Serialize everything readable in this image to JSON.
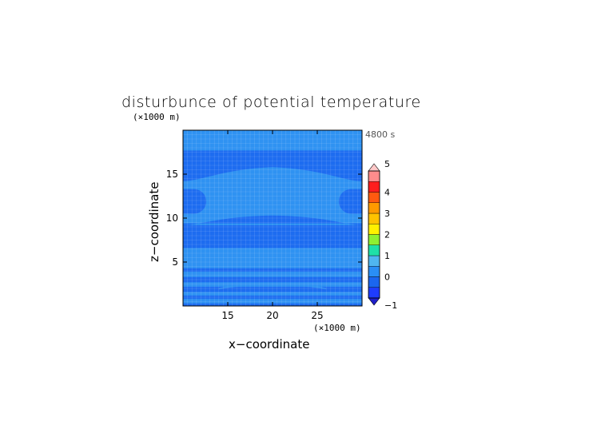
{
  "chart_data": {
    "type": "heatmap",
    "title": "disturbunce of potential temperature",
    "xlabel": "x−coordinate",
    "ylabel": "z−coordinate",
    "x_unit": "(×1000 m)",
    "y_unit": "(×1000 m)",
    "time_label": "4800 s",
    "xlim": [
      10,
      30
    ],
    "ylim": [
      0,
      20
    ],
    "x_ticks": [
      "15",
      "20",
      "25"
    ],
    "y_ticks": [
      "5",
      "10",
      "15"
    ],
    "x_tick_values": [
      15,
      20,
      25
    ],
    "y_tick_values": [
      5,
      10,
      15
    ],
    "colorbar": {
      "ticks": [
        "−1",
        "0",
        "1",
        "2",
        "3",
        "4",
        "5"
      ],
      "tick_values": [
        -1,
        0,
        1,
        2,
        3,
        4,
        5
      ],
      "levels": [
        -1,
        -0.5,
        0,
        0.5,
        1,
        1.5,
        2,
        2.5,
        3,
        3.5,
        4,
        4.5,
        5
      ],
      "colors": [
        "#1e3cff",
        "#1b66ef",
        "#2a8ef5",
        "#4fb6f0",
        "#1fe0a8",
        "#8ff032",
        "#fff100",
        "#ffc300",
        "#ff9a00",
        "#ff5a10",
        "#ff1e1e",
        "#ff8c8c"
      ],
      "extend_low_color": "#1e1ec8",
      "extend_high_color": "#ffc8c8"
    },
    "field_colors": {
      "light": "#2f92f2",
      "dark": "#1d6cf0"
    },
    "bands": [
      {
        "z": [
          0.0,
          0.3
        ],
        "level": "dark"
      },
      {
        "z": [
          0.3,
          0.8
        ],
        "level": "light"
      },
      {
        "z": [
          0.8,
          1.2
        ],
        "level": "dark"
      },
      {
        "z": [
          1.2,
          1.6
        ],
        "level": "light"
      },
      {
        "z": [
          1.6,
          2.2
        ],
        "level": "dark"
      },
      {
        "z": [
          2.2,
          2.7
        ],
        "level": "light"
      },
      {
        "z": [
          2.7,
          3.3
        ],
        "level": "dark"
      },
      {
        "z": [
          3.3,
          3.9
        ],
        "level": "light"
      },
      {
        "z": [
          3.9,
          4.3
        ],
        "level": "dark"
      },
      {
        "z": [
          4.3,
          6.6
        ],
        "level": "light"
      },
      {
        "z": [
          6.6,
          9.2
        ],
        "level": "dark"
      },
      {
        "z": [
          9.2,
          14.2
        ],
        "level": "light"
      },
      {
        "z": [
          14.2,
          17.7
        ],
        "level": "dark"
      },
      {
        "z": [
          17.7,
          20.0
        ],
        "level": "light"
      }
    ],
    "side_blobs": [
      {
        "x": [
          10.0,
          12.6
        ],
        "z": [
          10.5,
          13.3
        ],
        "level": "dark"
      },
      {
        "x": [
          27.4,
          30.0
        ],
        "z": [
          10.5,
          13.3
        ],
        "level": "dark"
      }
    ],
    "grid": true
  }
}
